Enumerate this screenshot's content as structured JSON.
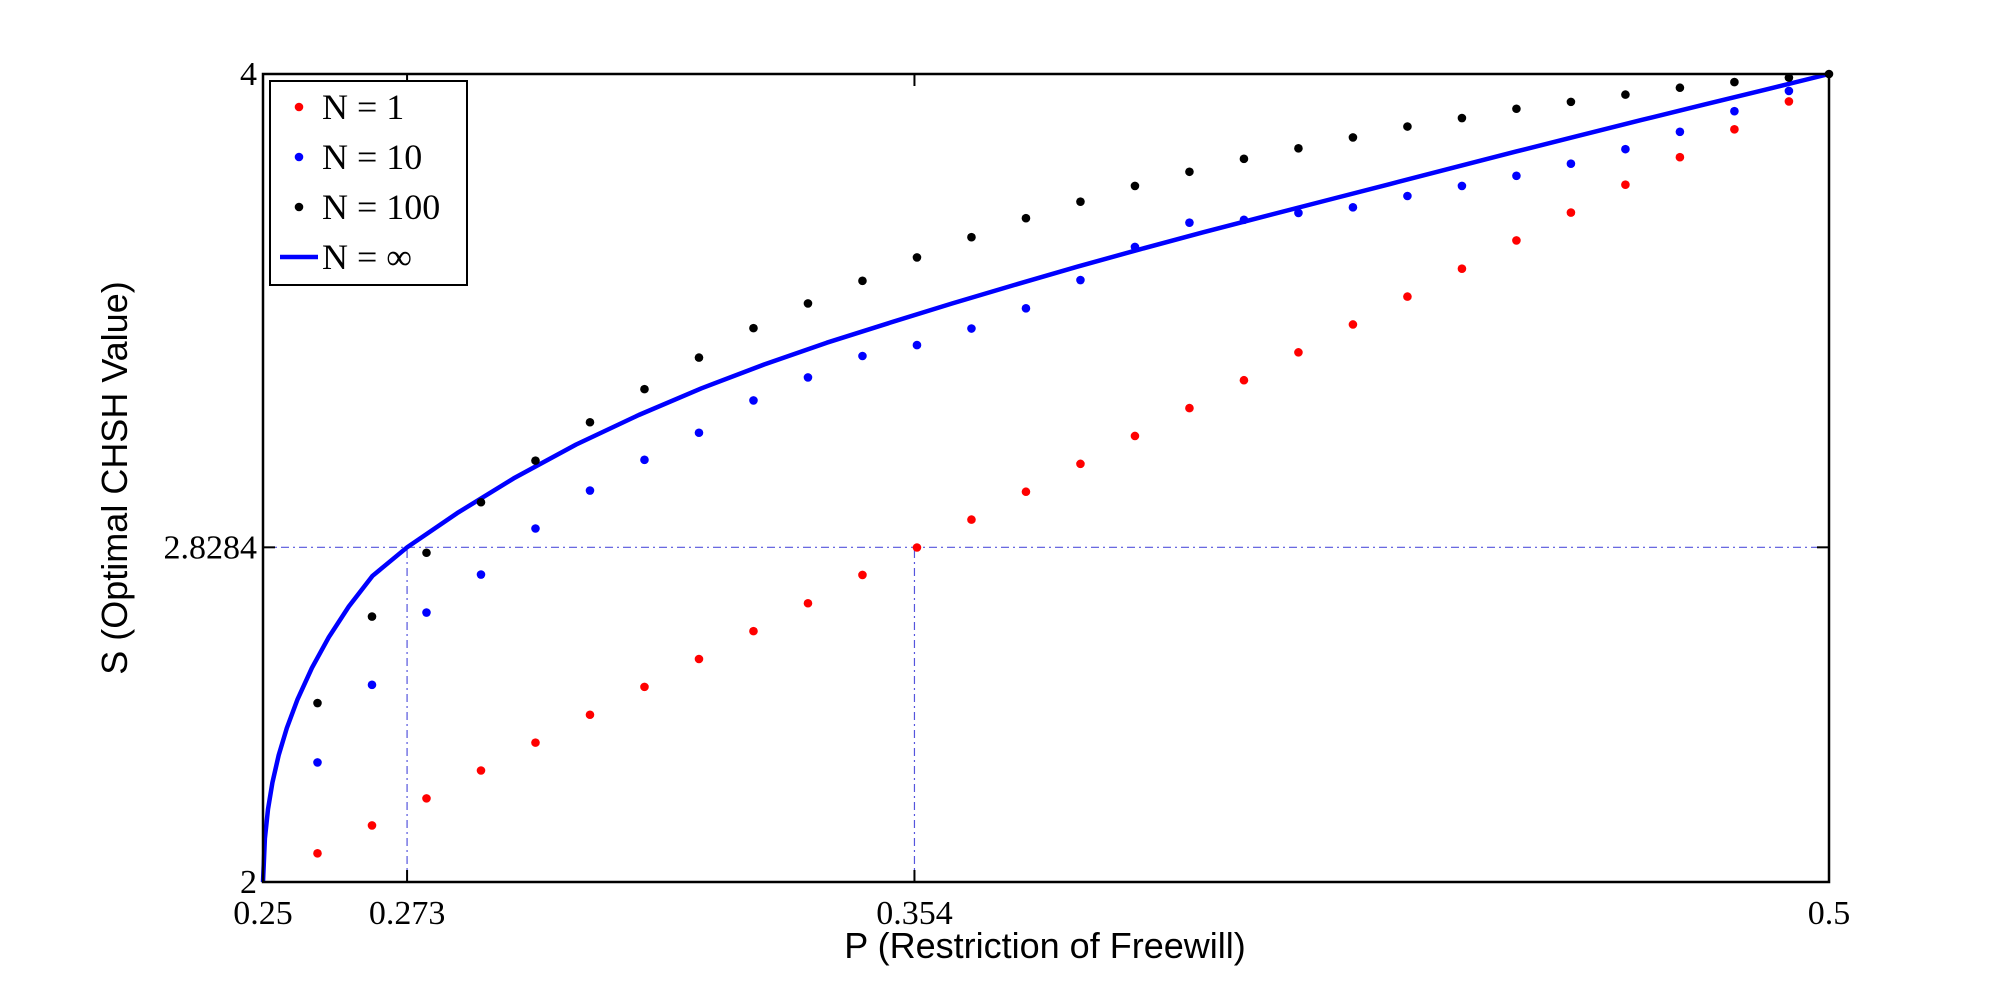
{
  "chart_data": {
    "type": "scatter",
    "xlabel": "P (Restriction of Freewill)",
    "ylabel": "S (Optimal CHSH Value)",
    "xlim": [
      0.25,
      0.5
    ],
    "ylim": [
      2,
      4
    ],
    "x_ticks": [
      {
        "value": 0.25,
        "label": "0.25"
      },
      {
        "value": 0.273,
        "label": "0.273"
      },
      {
        "value": 0.354,
        "label": "0.354"
      },
      {
        "value": 0.5,
        "label": "0.5"
      }
    ],
    "y_ticks": [
      {
        "value": 2,
        "label": "2"
      },
      {
        "value": 2.8284,
        "label": "2.8284"
      },
      {
        "value": 4,
        "label": "4"
      }
    ],
    "reference_lines": [
      {
        "orientation": "horizontal",
        "value": 2.8284,
        "from": 0.25,
        "to": 0.5
      },
      {
        "orientation": "vertical",
        "value": 0.273,
        "from": 2,
        "to": 2.8284
      },
      {
        "orientation": "vertical",
        "value": 0.354,
        "from": 2,
        "to": 2.8284
      }
    ],
    "legend_position": "top-left",
    "series": [
      {
        "name": "N = 1",
        "kind": "points",
        "color": "#ff0000",
        "points": [
          [
            0.2587,
            2.071
          ],
          [
            0.2674,
            2.14
          ],
          [
            0.2761,
            2.207
          ],
          [
            0.2848,
            2.276
          ],
          [
            0.2935,
            2.345
          ],
          [
            0.3022,
            2.414
          ],
          [
            0.3109,
            2.483
          ],
          [
            0.3196,
            2.552
          ],
          [
            0.3283,
            2.621
          ],
          [
            0.337,
            2.69
          ],
          [
            0.3457,
            2.76
          ],
          [
            0.3544,
            2.828
          ],
          [
            0.3631,
            2.897
          ],
          [
            0.3718,
            2.966
          ],
          [
            0.3805,
            3.035
          ],
          [
            0.3892,
            3.104
          ],
          [
            0.3979,
            3.173
          ],
          [
            0.4066,
            3.242
          ],
          [
            0.4153,
            3.311
          ],
          [
            0.424,
            3.38
          ],
          [
            0.4327,
            3.449
          ],
          [
            0.4414,
            3.518
          ],
          [
            0.4501,
            3.588
          ],
          [
            0.4588,
            3.657
          ],
          [
            0.4675,
            3.726
          ],
          [
            0.4762,
            3.794
          ],
          [
            0.4849,
            3.863
          ],
          [
            0.4936,
            3.932
          ]
        ]
      },
      {
        "name": "N = 10",
        "kind": "points",
        "color": "#0000ff",
        "points": [
          [
            0.2587,
            2.296
          ],
          [
            0.2674,
            2.488
          ],
          [
            0.2761,
            2.667
          ],
          [
            0.2848,
            2.761
          ],
          [
            0.2935,
            2.875
          ],
          [
            0.3022,
            2.969
          ],
          [
            0.3109,
            3.045
          ],
          [
            0.3196,
            3.112
          ],
          [
            0.3283,
            3.192
          ],
          [
            0.337,
            3.249
          ],
          [
            0.3457,
            3.302
          ],
          [
            0.3544,
            3.329
          ],
          [
            0.3631,
            3.37
          ],
          [
            0.3718,
            3.42
          ],
          [
            0.3805,
            3.49
          ],
          [
            0.3892,
            3.572
          ],
          [
            0.3979,
            3.632
          ],
          [
            0.4066,
            3.639
          ],
          [
            0.4153,
            3.656
          ],
          [
            0.424,
            3.67
          ],
          [
            0.4327,
            3.698
          ],
          [
            0.4414,
            3.723
          ],
          [
            0.4501,
            3.748
          ],
          [
            0.4588,
            3.778
          ],
          [
            0.4675,
            3.814
          ],
          [
            0.4762,
            3.857
          ],
          [
            0.4849,
            3.908
          ],
          [
            0.4936,
            3.958
          ]
        ]
      },
      {
        "name": "N = 100",
        "kind": "points",
        "color": "#000000",
        "points": [
          [
            0.2587,
            2.443
          ],
          [
            0.2674,
            2.657
          ],
          [
            0.2761,
            2.815
          ],
          [
            0.2848,
            2.94
          ],
          [
            0.2935,
            3.043
          ],
          [
            0.3022,
            3.138
          ],
          [
            0.3109,
            3.22
          ],
          [
            0.3196,
            3.298
          ],
          [
            0.3283,
            3.371
          ],
          [
            0.337,
            3.432
          ],
          [
            0.3457,
            3.488
          ],
          [
            0.3544,
            3.546
          ],
          [
            0.3631,
            3.596
          ],
          [
            0.3718,
            3.643
          ],
          [
            0.3805,
            3.684
          ],
          [
            0.3892,
            3.723
          ],
          [
            0.3979,
            3.758
          ],
          [
            0.4066,
            3.79
          ],
          [
            0.4153,
            3.816
          ],
          [
            0.424,
            3.843
          ],
          [
            0.4327,
            3.87
          ],
          [
            0.4414,
            3.891
          ],
          [
            0.4501,
            3.914
          ],
          [
            0.4588,
            3.931
          ],
          [
            0.4675,
            3.949
          ],
          [
            0.4762,
            3.966
          ],
          [
            0.4849,
            3.98
          ],
          [
            0.4936,
            3.991
          ],
          [
            0.5,
            4.0
          ]
        ]
      },
      {
        "name": "N = ∞",
        "kind": "line",
        "color": "#0000ff",
        "points": [
          [
            0.25,
            2.0
          ],
          [
            0.2503,
            2.108
          ],
          [
            0.2508,
            2.18
          ],
          [
            0.2515,
            2.246
          ],
          [
            0.2525,
            2.314
          ],
          [
            0.2538,
            2.381
          ],
          [
            0.2555,
            2.452
          ],
          [
            0.2578,
            2.53
          ],
          [
            0.2605,
            2.606
          ],
          [
            0.2637,
            2.682
          ],
          [
            0.2675,
            2.758
          ],
          [
            0.273,
            2.8284
          ],
          [
            0.281,
            2.913
          ],
          [
            0.29,
            2.999
          ],
          [
            0.3,
            3.083
          ],
          [
            0.31,
            3.156
          ],
          [
            0.32,
            3.222
          ],
          [
            0.33,
            3.281
          ],
          [
            0.34,
            3.335
          ],
          [
            0.35,
            3.384
          ],
          [
            0.36,
            3.432
          ],
          [
            0.37,
            3.478
          ],
          [
            0.38,
            3.523
          ],
          [
            0.39,
            3.566
          ],
          [
            0.4,
            3.608
          ],
          [
            0.41,
            3.648
          ],
          [
            0.42,
            3.688
          ],
          [
            0.43,
            3.728
          ],
          [
            0.44,
            3.768
          ],
          [
            0.45,
            3.808
          ],
          [
            0.46,
            3.847
          ],
          [
            0.47,
            3.886
          ],
          [
            0.48,
            3.924
          ],
          [
            0.49,
            3.962
          ],
          [
            0.5,
            4.0
          ]
        ]
      }
    ]
  }
}
